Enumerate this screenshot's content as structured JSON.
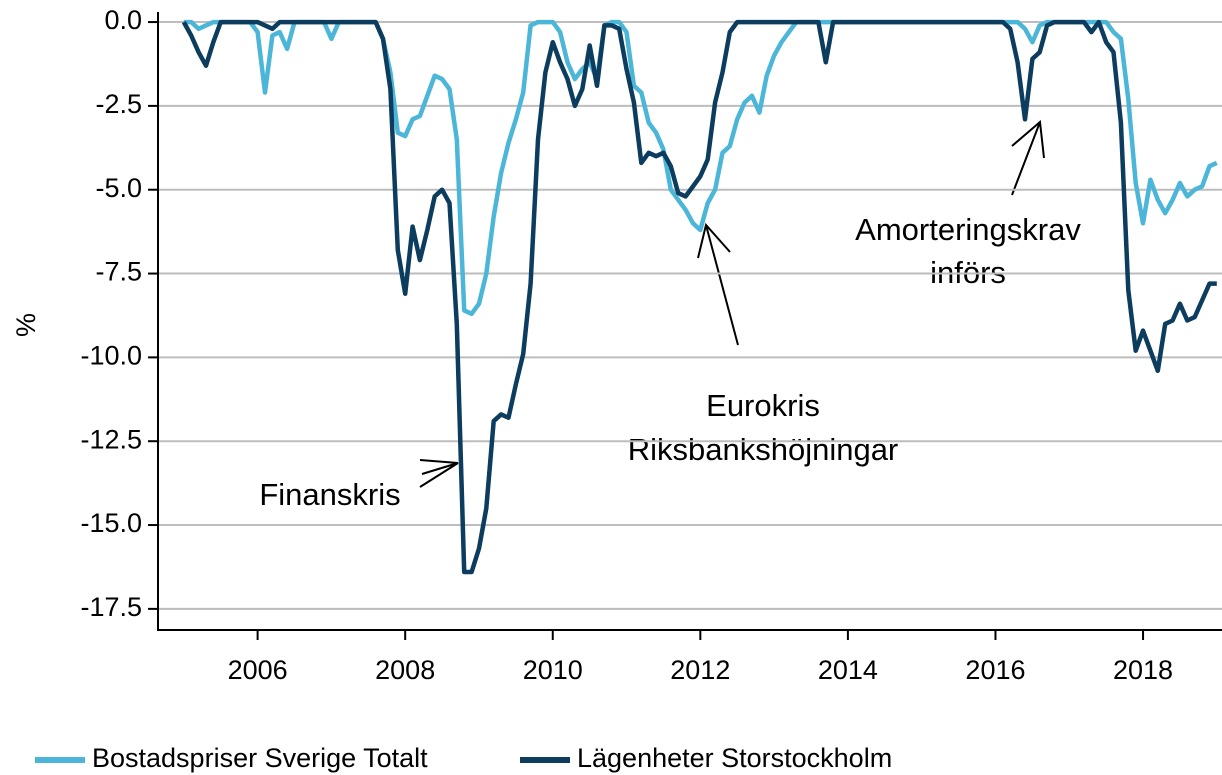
{
  "chart_data": {
    "type": "line",
    "ylabel": "%",
    "x": [
      2005.0,
      2005.1,
      2005.2,
      2005.3,
      2005.4,
      2005.5,
      2005.6,
      2005.7,
      2005.8,
      2005.9,
      2006.0,
      2006.1,
      2006.2,
      2006.3,
      2006.4,
      2006.5,
      2006.6,
      2006.7,
      2006.8,
      2006.9,
      2007.0,
      2007.1,
      2007.2,
      2007.3,
      2007.4,
      2007.5,
      2007.6,
      2007.7,
      2007.8,
      2007.9,
      2008.0,
      2008.1,
      2008.2,
      2008.3,
      2008.4,
      2008.5,
      2008.6,
      2008.7,
      2008.8,
      2008.9,
      2009.0,
      2009.1,
      2009.2,
      2009.3,
      2009.4,
      2009.5,
      2009.6,
      2009.7,
      2009.8,
      2009.9,
      2010.0,
      2010.1,
      2010.2,
      2010.3,
      2010.4,
      2010.5,
      2010.6,
      2010.7,
      2010.8,
      2010.9,
      2011.0,
      2011.1,
      2011.2,
      2011.3,
      2011.4,
      2011.5,
      2011.6,
      2011.7,
      2011.8,
      2011.9,
      2012.0,
      2012.1,
      2012.2,
      2012.3,
      2012.4,
      2012.5,
      2012.6,
      2012.7,
      2012.8,
      2012.9,
      2013.0,
      2013.1,
      2013.2,
      2013.3,
      2013.4,
      2013.5,
      2013.6,
      2013.7,
      2013.8,
      2013.9,
      2014.0,
      2014.1,
      2014.2,
      2014.3,
      2014.4,
      2014.5,
      2014.6,
      2014.7,
      2014.8,
      2014.9,
      2015.0,
      2015.1,
      2015.2,
      2015.3,
      2015.4,
      2015.5,
      2015.6,
      2015.7,
      2015.8,
      2015.9,
      2016.0,
      2016.1,
      2016.2,
      2016.3,
      2016.4,
      2016.5,
      2016.6,
      2016.7,
      2016.8,
      2016.9,
      2017.0,
      2017.1,
      2017.2,
      2017.3,
      2017.4,
      2017.5,
      2017.6,
      2017.7,
      2017.8,
      2017.9,
      2018.0,
      2018.1,
      2018.2,
      2018.3,
      2018.4,
      2018.5,
      2018.6,
      2018.7,
      2018.8,
      2018.9,
      2019.0
    ],
    "series": [
      {
        "name": "Bostadspriser Sverige Totalt",
        "color": "#4cb6d9",
        "values": [
          0,
          0,
          -0.2,
          -0.1,
          0,
          0,
          0,
          0,
          0,
          0,
          -0.3,
          -2.1,
          -0.4,
          -0.3,
          -0.8,
          0,
          0,
          0,
          0,
          0,
          -0.5,
          0,
          0,
          0,
          0,
          0,
          0,
          -0.5,
          -1.5,
          -3.3,
          -3.4,
          -2.9,
          -2.8,
          -2.2,
          -1.6,
          -1.7,
          -2.0,
          -3.5,
          -8.6,
          -8.7,
          -8.4,
          -7.5,
          -5.8,
          -4.5,
          -3.6,
          -2.9,
          -2.1,
          -0.1,
          0,
          0,
          0,
          -0.3,
          -1.2,
          -1.7,
          -1.4,
          -1.2,
          -1.7,
          -0.1,
          0,
          0,
          -0.3,
          -1.9,
          -2.1,
          -3.0,
          -3.3,
          -3.8,
          -5.0,
          -5.3,
          -5.6,
          -6.0,
          -6.2,
          -5.4,
          -5.0,
          -3.9,
          -3.7,
          -2.9,
          -2.4,
          -2.2,
          -2.7,
          -1.6,
          -1.0,
          -0.6,
          -0.3,
          0,
          0,
          0,
          0,
          0,
          0,
          0,
          0,
          0,
          0,
          0,
          0,
          0,
          0,
          0,
          0,
          0,
          0,
          0,
          0,
          0,
          0,
          0,
          0,
          0,
          0,
          0,
          0,
          0,
          0,
          0,
          -0.2,
          -0.6,
          -0.1,
          0,
          0,
          0,
          0,
          0,
          0,
          0,
          0,
          0,
          -0.3,
          -0.5,
          -2.3,
          -4.8,
          -6.0,
          -4.7,
          -5.3,
          -5.7,
          -5.3,
          -4.8,
          -5.2,
          -5.0,
          -4.9,
          -4.3,
          -4.2
        ]
      },
      {
        "name": "Lägenheter Storstockholm",
        "color": "#0c3c5e",
        "values": [
          0,
          -0.4,
          -0.9,
          -1.3,
          -0.6,
          0,
          0,
          0,
          0,
          0,
          0,
          -0.1,
          -0.2,
          0,
          0,
          0,
          0,
          0,
          0,
          0,
          0,
          0,
          0,
          0,
          0,
          0,
          0,
          -0.5,
          -2.0,
          -6.8,
          -8.1,
          -6.1,
          -7.1,
          -6.2,
          -5.2,
          -5.0,
          -5.4,
          -9.0,
          -16.4,
          -16.4,
          -15.7,
          -14.5,
          -11.9,
          -11.7,
          -11.8,
          -10.8,
          -9.9,
          -7.8,
          -3.5,
          -1.5,
          -0.6,
          -1.2,
          -1.7,
          -2.5,
          -2.0,
          -0.7,
          -1.9,
          -0.1,
          -0.1,
          -0.2,
          -1.4,
          -2.4,
          -4.2,
          -3.9,
          -4.0,
          -3.9,
          -4.3,
          -5.1,
          -5.2,
          -4.9,
          -4.6,
          -4.1,
          -2.4,
          -1.5,
          -0.3,
          0,
          0,
          0,
          0,
          0,
          0,
          0,
          0,
          0,
          0,
          0,
          0,
          -1.2,
          0,
          0,
          0,
          0,
          0,
          0,
          0,
          0,
          0,
          0,
          0,
          0,
          0,
          0,
          0,
          0,
          0,
          0,
          0,
          0,
          0,
          0,
          0,
          0,
          -0.2,
          -1.2,
          -2.9,
          -1.1,
          -0.9,
          -0.1,
          0,
          0,
          0,
          0,
          0,
          -0.3,
          0,
          -0.6,
          -0.9,
          -3.0,
          -8.0,
          -9.8,
          -9.2,
          -9.8,
          -10.4,
          -9.0,
          -8.9,
          -8.4,
          -8.9,
          -8.8,
          -8.3,
          -7.8,
          -7.8
        ]
      }
    ],
    "xlim": [
      2004.65,
      2019.07
    ],
    "xticks": [
      2006,
      2008,
      2010,
      2012,
      2014,
      2016,
      2018
    ],
    "ylim": [
      -18.13,
      0.3
    ],
    "yticks": [
      {
        "value": 0,
        "label": "0.0"
      },
      -2.5,
      {
        "value": -5,
        "label": "-5.0"
      },
      -7.5,
      {
        "value": -10,
        "label": "-10.0"
      },
      -12.5,
      {
        "value": -15,
        "label": "-15.0"
      },
      -17.5
    ],
    "grid": true,
    "legend": "bottom",
    "annotations": [
      "Finanskris",
      "Eurokris",
      "Riksbankshöjningar",
      "Amorteringskrav",
      "införs"
    ]
  }
}
